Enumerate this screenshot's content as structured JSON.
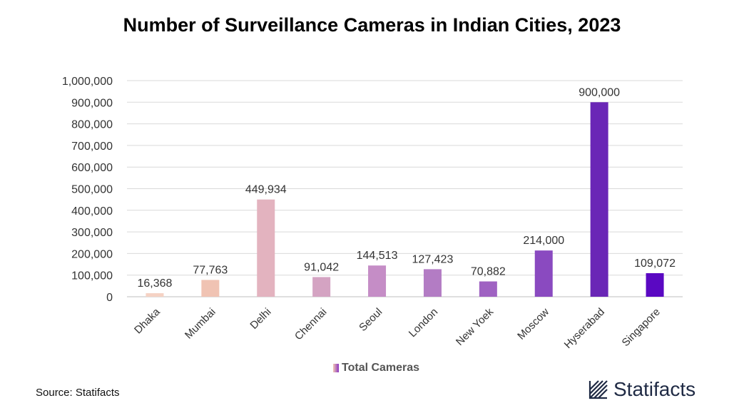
{
  "title": "Number of Surveillance Cameras in Indian Cities, 2023",
  "source": "Source: Statifacts",
  "brand": "Statifacts",
  "legend_label": "Total Cameras",
  "chart_data": {
    "type": "bar",
    "title": "Number of Surveillance Cameras in Indian Cities, 2023",
    "categories": [
      "Dhaka",
      "Mumbai",
      "Delhi",
      "Chennai",
      "Seoul",
      "London",
      "New Yoek",
      "Moscow",
      "Hyserabad",
      "Singapore"
    ],
    "series": [
      {
        "name": "Total Cameras",
        "values": [
          16368,
          77763,
          449934,
          91042,
          144513,
          127423,
          70882,
          214000,
          900000,
          109072
        ],
        "labels": [
          "16,368",
          "77,763",
          "449,934",
          "91,042",
          "144,513",
          "127,423",
          "70,882",
          "214,000",
          "900,000",
          "109,072"
        ]
      }
    ],
    "colors": [
      "#f5d2c4",
      "#f0c3b3",
      "#e3b3bf",
      "#d4a3c2",
      "#c58dc6",
      "#b37cc4",
      "#9f62c2",
      "#8a4ac0",
      "#6a26b6",
      "#5a08c2"
    ],
    "yticks": [
      "0",
      "100,000",
      "200,000",
      "300,000",
      "400,000",
      "500,000",
      "600,000",
      "700,000",
      "800,000",
      "900,000",
      "1,000,000"
    ],
    "ylim": [
      0,
      1000000
    ],
    "grid": true,
    "legend_position": "bottom-center"
  }
}
